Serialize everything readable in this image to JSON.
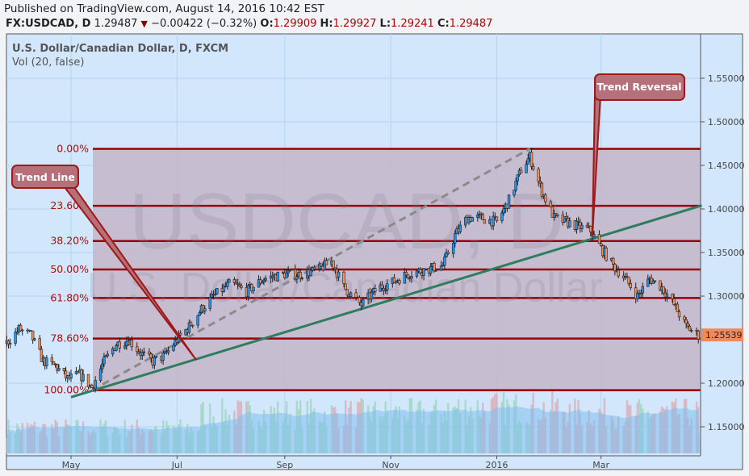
{
  "header": {
    "published": "Published on TradingView.com, August 14, 2016 10:42 EST",
    "symbol": "FX:USDCAD, D",
    "last": "1.29487",
    "change_icon": "triangle-down-icon",
    "change": "−0.00422 (−0.32%)",
    "open_label": "O:",
    "open": "1.29909",
    "high_label": "H:",
    "high": "1.29927",
    "low_label": "L:",
    "low": "1.29241",
    "close_label": "C:",
    "close": "1.29487"
  },
  "legend": {
    "title": "U.S. Dollar/Canadian Dollar, D, FXCM",
    "volume": "Vol (20, false)"
  },
  "watermark": {
    "line1": "USDCAD, D",
    "line2": "U.S. Dollar/Canadian Dollar"
  },
  "colors": {
    "background": "#d2e7fb",
    "fib_zone": "#c5b5c8",
    "fib_line": "#990000",
    "trend": "#2e7d5e",
    "up": "#2196f3",
    "down": "#f4915c",
    "callout": "#b5707a",
    "last_price": "#f08a5d"
  },
  "annotations": {
    "trend_line": "Trend Line",
    "trend_reversal": "Trend Reversal"
  },
  "chart_data": {
    "type": "candlestick",
    "ylim": [
      1.125,
      1.595
    ],
    "y_ticks": [
      "1.55000",
      "1.50000",
      "1.45000",
      "1.40000",
      "1.35000",
      "1.30000",
      "1.20000",
      "1.15000"
    ],
    "x_ticks": [
      "May",
      "Jul",
      "Sep",
      "Nov",
      "2016",
      "Mar"
    ],
    "last_price_label": "1.25539",
    "fibonacci": {
      "high": 1.469,
      "low": 1.192,
      "levels": [
        {
          "label": "0.00%",
          "value": 1.469
        },
        {
          "label": "23.60%",
          "value": 1.4036
        },
        {
          "label": "38.20%",
          "value": 1.3632
        },
        {
          "label": "50.00%",
          "value": 1.3305
        },
        {
          "label": "61.80%",
          "value": 1.2978
        },
        {
          "label": "78.60%",
          "value": 1.2513
        },
        {
          "label": "100.00%",
          "value": 1.192
        }
      ]
    },
    "trend_line": {
      "from": [
        "2015-05-01",
        1.184
      ],
      "to": [
        "2016-04-28",
        1.404
      ]
    },
    "dashed_line": {
      "from": [
        "2015-05-13",
        1.192
      ],
      "to": [
        "2016-01-20",
        1.469
      ]
    },
    "closes": [
      [
        "2015-03-25",
        1.246
      ],
      [
        "2015-04-01",
        1.262
      ],
      [
        "2015-04-08",
        1.255
      ],
      [
        "2015-04-15",
        1.225
      ],
      [
        "2015-04-22",
        1.22
      ],
      [
        "2015-04-29",
        1.205
      ],
      [
        "2015-05-06",
        1.21
      ],
      [
        "2015-05-13",
        1.195
      ],
      [
        "2015-05-20",
        1.225
      ],
      [
        "2015-05-27",
        1.245
      ],
      [
        "2015-06-03",
        1.25
      ],
      [
        "2015-06-10",
        1.235
      ],
      [
        "2015-06-17",
        1.225
      ],
      [
        "2015-06-24",
        1.232
      ],
      [
        "2015-07-01",
        1.25
      ],
      [
        "2015-07-08",
        1.265
      ],
      [
        "2015-07-15",
        1.285
      ],
      [
        "2015-07-22",
        1.3
      ],
      [
        "2015-08-01",
        1.315
      ],
      [
        "2015-08-10",
        1.305
      ],
      [
        "2015-08-20",
        1.32
      ],
      [
        "2015-09-01",
        1.325
      ],
      [
        "2015-09-10",
        1.325
      ],
      [
        "2015-09-20",
        1.33
      ],
      [
        "2015-09-28",
        1.34
      ],
      [
        "2015-10-05",
        1.31
      ],
      [
        "2015-10-15",
        1.29
      ],
      [
        "2015-10-25",
        1.31
      ],
      [
        "2015-11-01",
        1.315
      ],
      [
        "2015-11-10",
        1.325
      ],
      [
        "2015-11-20",
        1.33
      ],
      [
        "2015-12-01",
        1.335
      ],
      [
        "2015-12-08",
        1.37
      ],
      [
        "2015-12-15",
        1.39
      ],
      [
        "2015-12-22",
        1.39
      ],
      [
        "2016-01-01",
        1.385
      ],
      [
        "2016-01-08",
        1.41
      ],
      [
        "2016-01-15",
        1.445
      ],
      [
        "2016-01-20",
        1.46
      ],
      [
        "2016-01-27",
        1.42
      ],
      [
        "2016-02-03",
        1.39
      ],
      [
        "2016-02-10",
        1.385
      ],
      [
        "2016-02-17",
        1.38
      ],
      [
        "2016-02-24",
        1.375
      ],
      [
        "2016-03-01",
        1.355
      ],
      [
        "2016-03-08",
        1.335
      ],
      [
        "2016-03-15",
        1.32
      ],
      [
        "2016-03-22",
        1.3
      ],
      [
        "2016-03-29",
        1.32
      ],
      [
        "2016-04-05",
        1.31
      ],
      [
        "2016-04-12",
        1.29
      ],
      [
        "2016-04-19",
        1.265
      ],
      [
        "2016-04-26",
        1.255
      ]
    ]
  }
}
